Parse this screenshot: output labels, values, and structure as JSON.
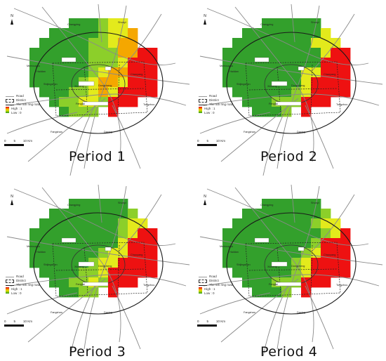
{
  "panels": [
    {
      "title": "Period 1",
      "grid": [
        "....GGGLYY....",
        "..GGGGGLYYO...",
        ".GGGGGLLYOO...",
        "GGGGGGLLLOORR.",
        "GGGGGGLLLYRRR.",
        "GGGGGGLYOORRR.",
        "GGGGGLYOOYRRR.",
        ".GGGLLYOYRRRR.",
        "..GLLYYLRRR...",
        "...GLLL.R....."
      ]
    },
    {
      "title": "Period 2",
      "grid": [
        "....GGGGGG....",
        "..GGGGGGGGY...",
        ".GGGGGGGGYYY..",
        "GGGGGGGGGGYRR.",
        "GGGGGGGGGGRRR.",
        "GGGGGGGGYYRRR.",
        "GGGGGGGGYRRRR.",
        ".GGGGGGLYRRRR.",
        "..GGGLLLRRR...",
        "...GGGL.R....."
      ]
    },
    {
      "title": "Period 3",
      "grid": [
        "....GGGGGG....",
        "..GGGGGGGGL...",
        ".GGGGGGGGLYY..",
        "GGGGGGGGGLYRR.",
        "GGGGGGGGGYRRR.",
        "GGGGGGGLYYRRR.",
        "GGGGGGLYYRRRR.",
        ".GGGGLLYRRRRR.",
        "..GGLLYLRRR...",
        "...GGLL.R....."
      ]
    },
    {
      "title": "Period 4",
      "grid": [
        "....GGGGGG....",
        "..GGGGGGGGL...",
        ".GGGGGGGGLYY..",
        "GGGGGGGGGGLYR.",
        "GGGGGGGGGLRRR.",
        "GGGGGGGGLYRRR.",
        "GGGGGGGLYRRRR.",
        ".GGGGGGLYRRRR.",
        "..GGGLLLRRR...",
        "...GGGL.R....."
      ]
    }
  ],
  "palette": {
    "G": "#33a02c",
    "L": "#8ccf2a",
    "Y": "#e3ea1c",
    "O": "#f5a700",
    "R": "#ee1111"
  },
  "legend": {
    "road": "Road",
    "district": "District",
    "ring": "The 6th ring road",
    "high": "High : 1",
    "low": "Low : 0"
  },
  "north_label": "N",
  "scale_labels": [
    "0",
    "5",
    "10 Km"
  ],
  "places": [
    "Changping",
    "Shunyi",
    "Haidian",
    "Chaoyang",
    "Shijingshan",
    "Xicheng",
    "Dongcheng",
    "Tongzhou",
    "Fengtai",
    "Daxing",
    "Fangshan",
    "Mentougou"
  ]
}
